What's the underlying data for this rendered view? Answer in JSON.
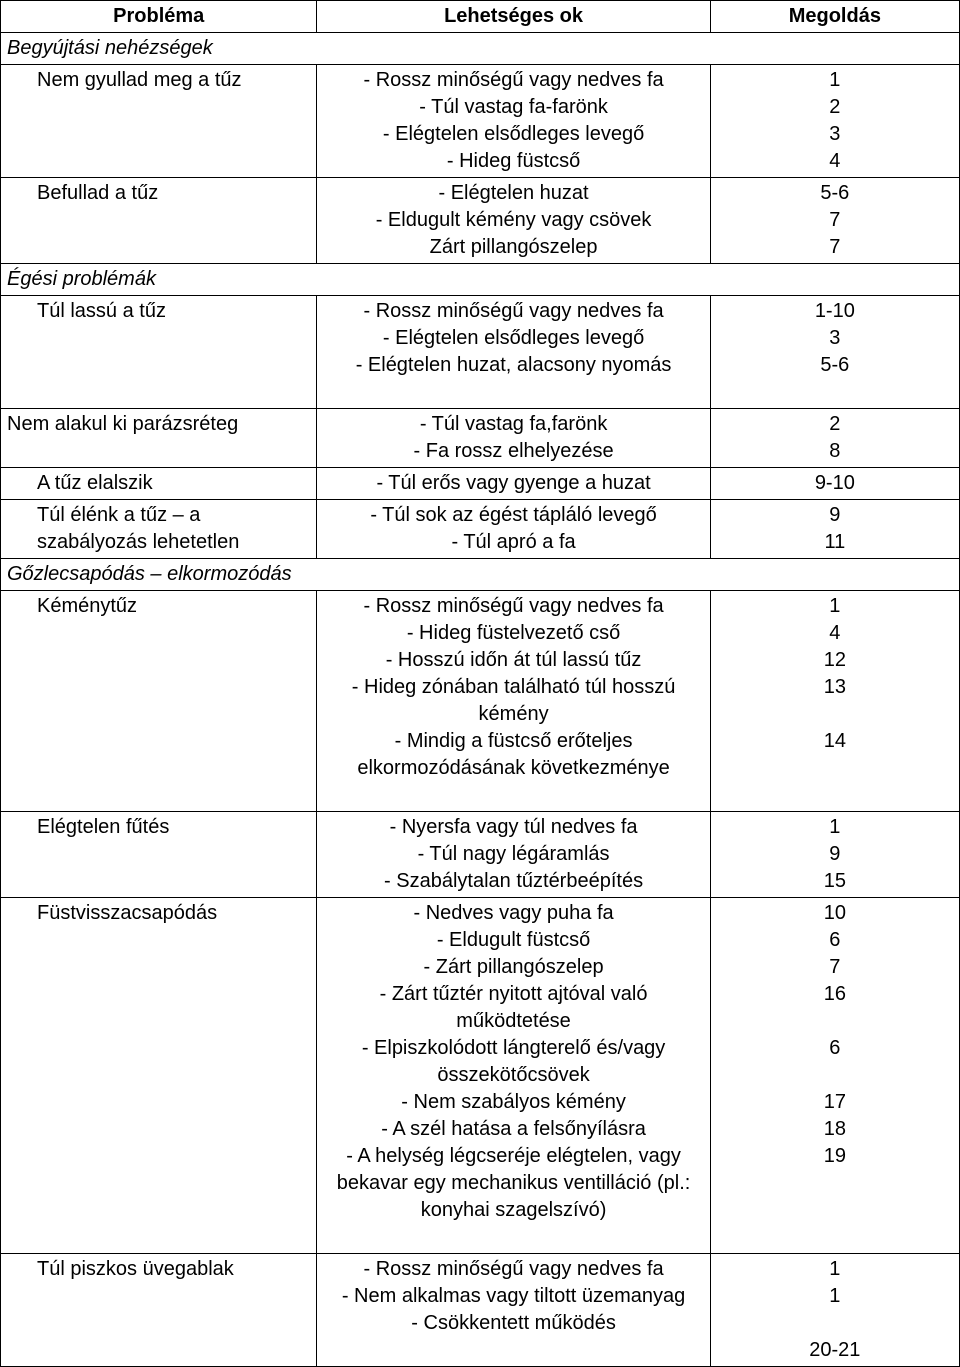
{
  "table": {
    "headers": [
      "Probléma",
      "Lehetséges ok",
      "Megoldás"
    ],
    "col_widths_pct": [
      33,
      41,
      26
    ],
    "border_color": "#000000",
    "font_family": "Arial",
    "header_fontsize_pt": 15,
    "body_fontsize_pt": 15,
    "background_color": "#ffffff",
    "text_color": "#000000",
    "sections": [
      {
        "title": "Begyújtási nehézségek",
        "rows": [
          {
            "problem": "Nem gyullad meg a tűz",
            "problem_indent": true,
            "causes": [
              "- Rossz minőségű vagy nedves fa",
              "- Túl vastag fa-farönk",
              "- Elégtelen elsődleges levegő",
              "- Hideg füstcső"
            ],
            "solutions": [
              "1",
              "2",
              "3",
              "4"
            ]
          },
          {
            "problem": "Befullad a tűz",
            "problem_indent": true,
            "causes": [
              "- Elégtelen huzat",
              "- Eldugult kémény vagy csövek",
              "Zárt pillangószelep"
            ],
            "solutions": [
              "5-6",
              "7",
              "7"
            ]
          }
        ]
      },
      {
        "title": "Égési problémák",
        "rows": [
          {
            "problem": "Túl lassú a tűz",
            "problem_indent": true,
            "causes": [
              "- Rossz minőségű vagy nedves fa",
              "- Elégtelen elsődleges levegő",
              "- Elégtelen huzat, alacsony nyomás"
            ],
            "solutions": [
              "1-10",
              "3",
              "5-6",
              ""
            ]
          },
          {
            "problem": "Nem alakul ki parázsréteg",
            "problem_indent": false,
            "causes": [
              "- Túl vastag fa,farönk",
              "- Fa rossz elhelyezése"
            ],
            "solutions": [
              "2",
              "8"
            ]
          },
          {
            "problem": "A tűz elalszik",
            "problem_indent": true,
            "causes": [
              "- Túl erős vagy gyenge a huzat"
            ],
            "solutions": [
              "9-10"
            ]
          },
          {
            "problem": "Túl élénk a tűz – a szabályozás lehetetlen",
            "problem_indent": true,
            "causes": [
              "- Túl sok az égést tápláló levegő",
              "- Túl apró a fa"
            ],
            "solutions": [
              "9",
              "11"
            ]
          }
        ]
      },
      {
        "title": "Gőzlecsapódás – elkormozódás",
        "rows": [
          {
            "problem": "Kéménytűz",
            "problem_indent": true,
            "causes": [
              "- Rossz minőségű vagy nedves fa",
              "- Hideg füstelvezető cső",
              "- Hosszú időn át túl lassú tűz",
              "- Hideg zónában található túl hosszú kémény",
              "- Mindig a füstcső erőteljes elkormozódásának következménye"
            ],
            "solutions": [
              "1",
              "4",
              "12",
              "13",
              "",
              "14",
              "",
              ""
            ]
          },
          {
            "problem": "Elégtelen fűtés",
            "problem_indent": true,
            "causes": [
              "- Nyersfa vagy túl nedves fa",
              "- Túl nagy légáramlás",
              "- Szabálytalan tűztérbeépítés"
            ],
            "solutions": [
              "1",
              "9",
              "15"
            ]
          },
          {
            "problem": "Füstvisszacsapódás",
            "problem_indent": true,
            "causes": [
              "- Nedves vagy puha fa",
              "- Eldugult füstcső",
              "- Zárt pillangószelep",
              "- Zárt tűztér nyitott ajtóval való működtetése",
              "- Elpiszkolódott lángterelő és/vagy összekötőcsövek",
              "- Nem szabályos kémény",
              "- A szél hatása a felsőnyílásra",
              "- A helység légcseréje elégtelen, vagy bekavar egy mechanikus ventilláció (pl.: konyhai szagelszívó)"
            ],
            "solutions": [
              "10",
              "6",
              "7",
              "16",
              "",
              "6",
              "",
              "17",
              "18",
              "19",
              "",
              "",
              ""
            ]
          },
          {
            "problem": "Túl piszkos üvegablak",
            "problem_indent": true,
            "causes": [
              "- Rossz minőségű vagy nedves fa",
              "- Nem alkalmas vagy tiltott üzemanyag",
              "- Csökkentett működés"
            ],
            "solutions": [
              "1",
              "1",
              "",
              "20-21"
            ]
          }
        ]
      }
    ]
  }
}
